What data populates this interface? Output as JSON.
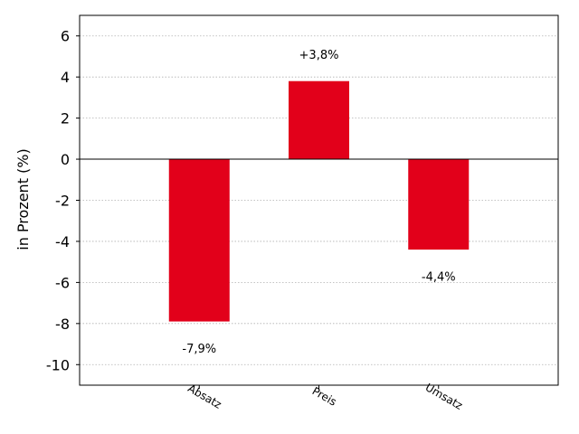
{
  "chart_data": {
    "type": "bar",
    "title": "",
    "xlabel": "",
    "ylabel": "in Prozent (%)",
    "categories": [
      "Absatz",
      "Preis",
      "Umsatz"
    ],
    "values": [
      -7.9,
      3.8,
      -4.4
    ],
    "data_labels": [
      "-7,9%",
      "+3,8%",
      "-4,4%"
    ],
    "ylim": [
      -11,
      7
    ],
    "yticks": [
      6,
      4,
      2,
      0,
      -2,
      -4,
      -6,
      -8,
      -10
    ],
    "grid": "horizontal dotted",
    "bar_color": "#e2001a",
    "legend": "none"
  }
}
